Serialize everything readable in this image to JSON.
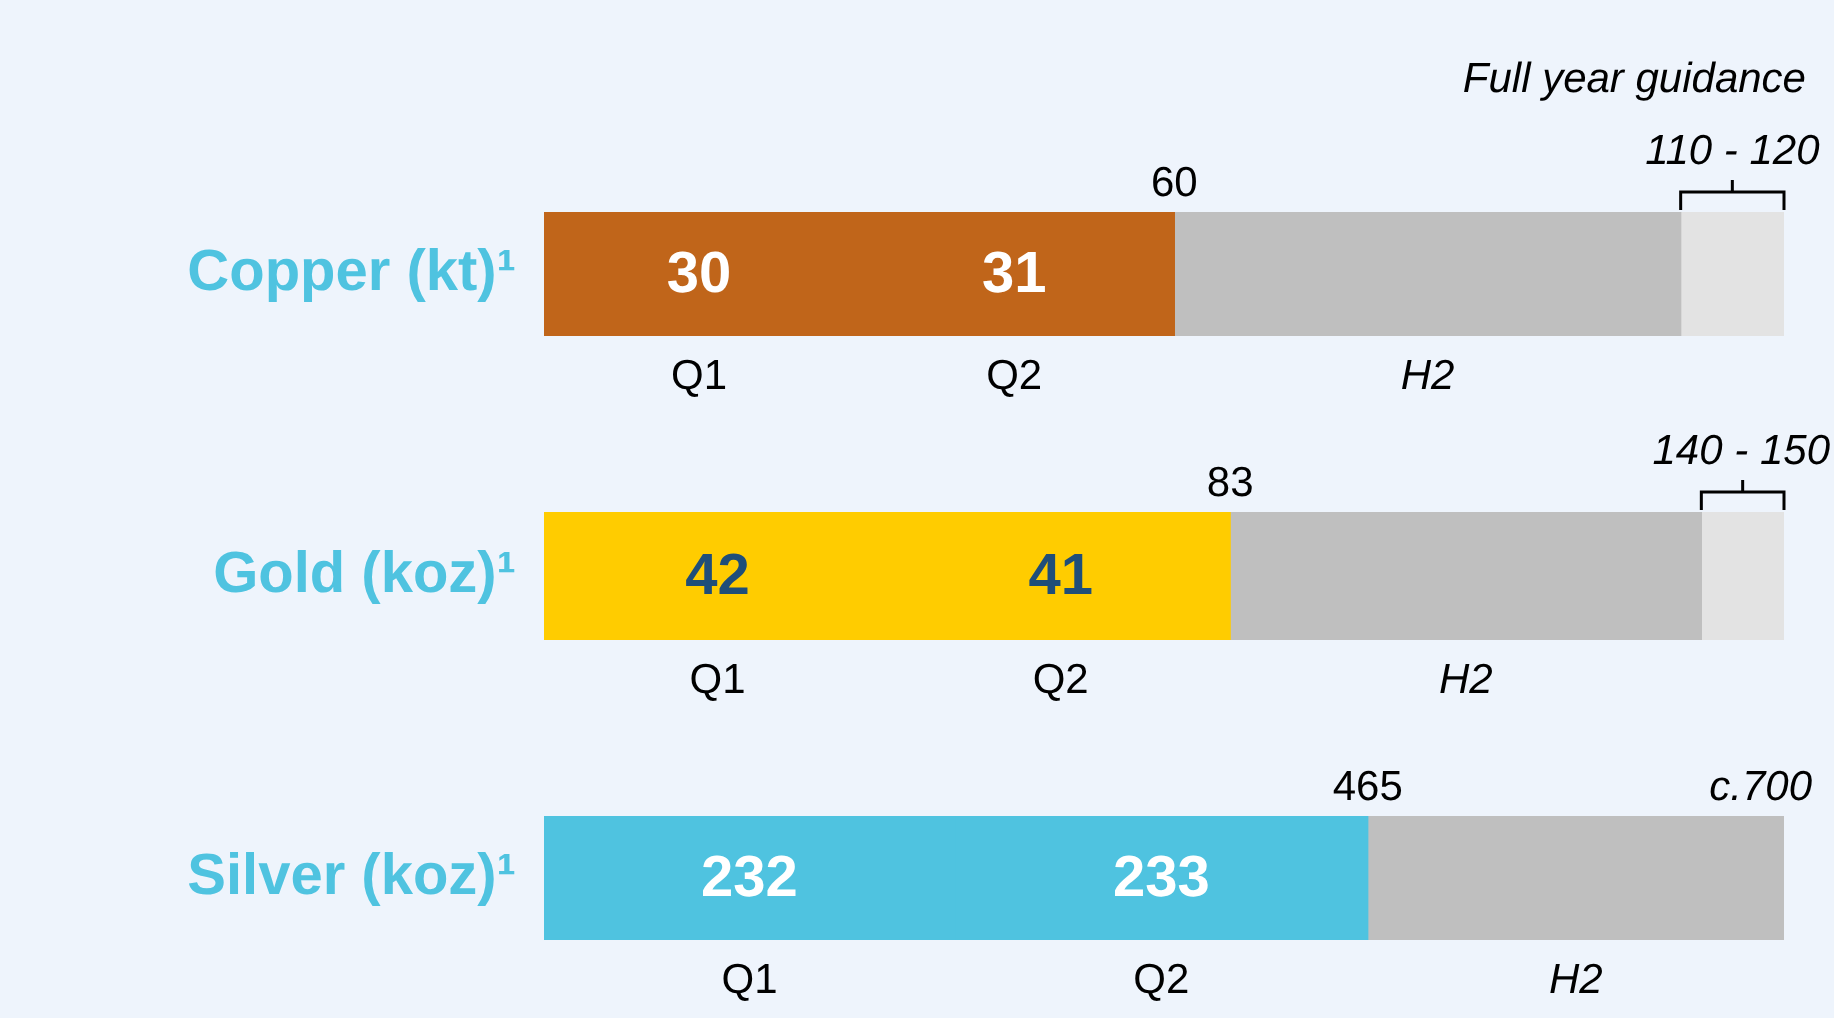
{
  "chart_data": [
    {
      "type": "bar",
      "orientation": "horizontal",
      "stacked": true,
      "tick_labels": "y",
      "legend": false,
      "categories": [
        "Copper (kt)¹"
      ],
      "xlim": [
        0,
        120
      ],
      "series": [
        {
          "name": "Q1",
          "color": "#c0651a",
          "values": [
            30
          ],
          "value_labels": [
            "30"
          ]
        },
        {
          "name": "Q2",
          "color": "#c0651a",
          "values": [
            31
          ],
          "value_labels": [
            "31"
          ]
        },
        {
          "name": "H2",
          "color": "#bfbfbf",
          "values": [
            49
          ]
        },
        {
          "color": "#e3e3e3",
          "values": [
            10
          ]
        }
      ],
      "annotations": [
        "Full year guidance",
        "60",
        "110 - 120"
      ]
    },
    {
      "type": "bar",
      "orientation": "horizontal",
      "stacked": true,
      "tick_labels": "y",
      "legend": false,
      "categories": [
        "Gold (koz)¹"
      ],
      "xlim": [
        0,
        150
      ],
      "series": [
        {
          "name": "Q1",
          "color": "#ffcc00",
          "values": [
            42
          ],
          "value_labels": [
            "42"
          ]
        },
        {
          "name": "Q2",
          "color": "#ffcc00",
          "values": [
            41
          ],
          "value_labels": [
            "41"
          ]
        },
        {
          "name": "H2",
          "color": "#bfbfbf",
          "values": [
            57
          ]
        },
        {
          "color": "#e3e3e3",
          "values": [
            10
          ]
        }
      ],
      "annotations": [
        "83",
        "140 - 150"
      ]
    },
    {
      "type": "bar",
      "orientation": "horizontal",
      "stacked": true,
      "tick_labels": "y",
      "legend": false,
      "categories": [
        "Silver (koz)¹"
      ],
      "xlim": [
        0,
        700
      ],
      "series": [
        {
          "name": "Q1",
          "color": "#4fc3e0",
          "values": [
            232
          ],
          "value_labels": [
            "232"
          ]
        },
        {
          "name": "Q2",
          "color": "#4fc3e0",
          "values": [
            233
          ],
          "value_labels": [
            "233"
          ]
        },
        {
          "name": "H2",
          "color": "#bfbfbf",
          "values": [
            235
          ]
        }
      ],
      "annotations": [
        "465",
        "c.700"
      ]
    }
  ]
}
